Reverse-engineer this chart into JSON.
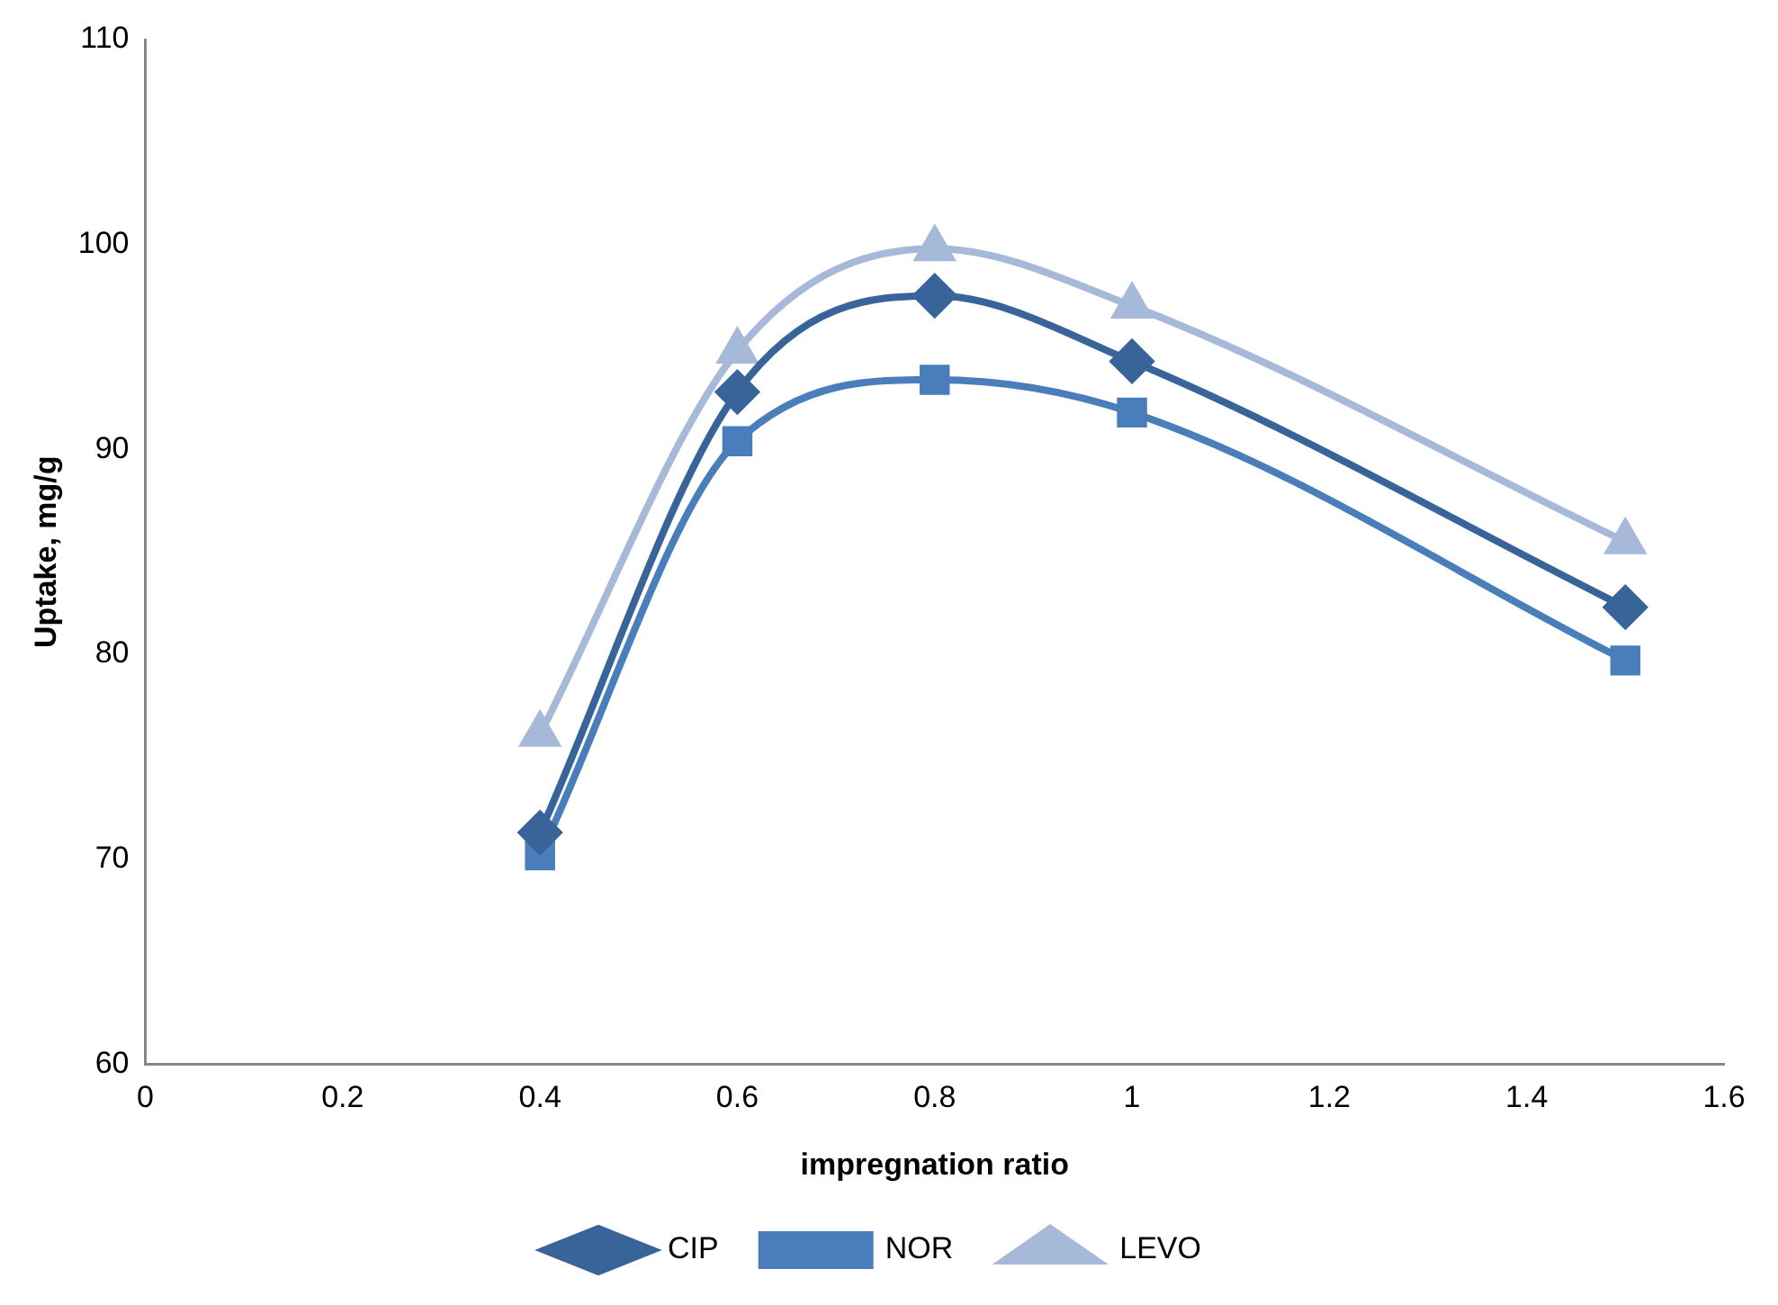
{
  "chart_data": {
    "type": "line",
    "xlabel": "impregnation ratio",
    "ylabel": "Uptake, mg/g",
    "x": [
      0.4,
      0.6,
      0.8,
      1,
      1.5
    ],
    "series": [
      {
        "name": "CIP",
        "color": "#38649a",
        "marker": "diamond",
        "values": [
          71.3,
          92.8,
          97.5,
          94.3,
          82.3
        ]
      },
      {
        "name": "NOR",
        "color": "#4a7ebb",
        "marker": "square",
        "values": [
          70.2,
          90.4,
          93.4,
          91.8,
          79.7
        ]
      },
      {
        "name": "LEVO",
        "color": "#a6b9d8",
        "marker": "triangle",
        "values": [
          76.1,
          94.8,
          99.8,
          97.0,
          85.5
        ]
      }
    ],
    "xlim": [
      0,
      1.6
    ],
    "xticks": [
      0,
      0.2,
      0.4,
      0.6,
      0.8,
      1,
      1.2,
      1.4,
      1.6
    ],
    "ylim": [
      60,
      110
    ],
    "yticks": [
      60,
      70,
      80,
      90,
      100,
      110
    ],
    "grid": false,
    "legend": "bottom"
  }
}
